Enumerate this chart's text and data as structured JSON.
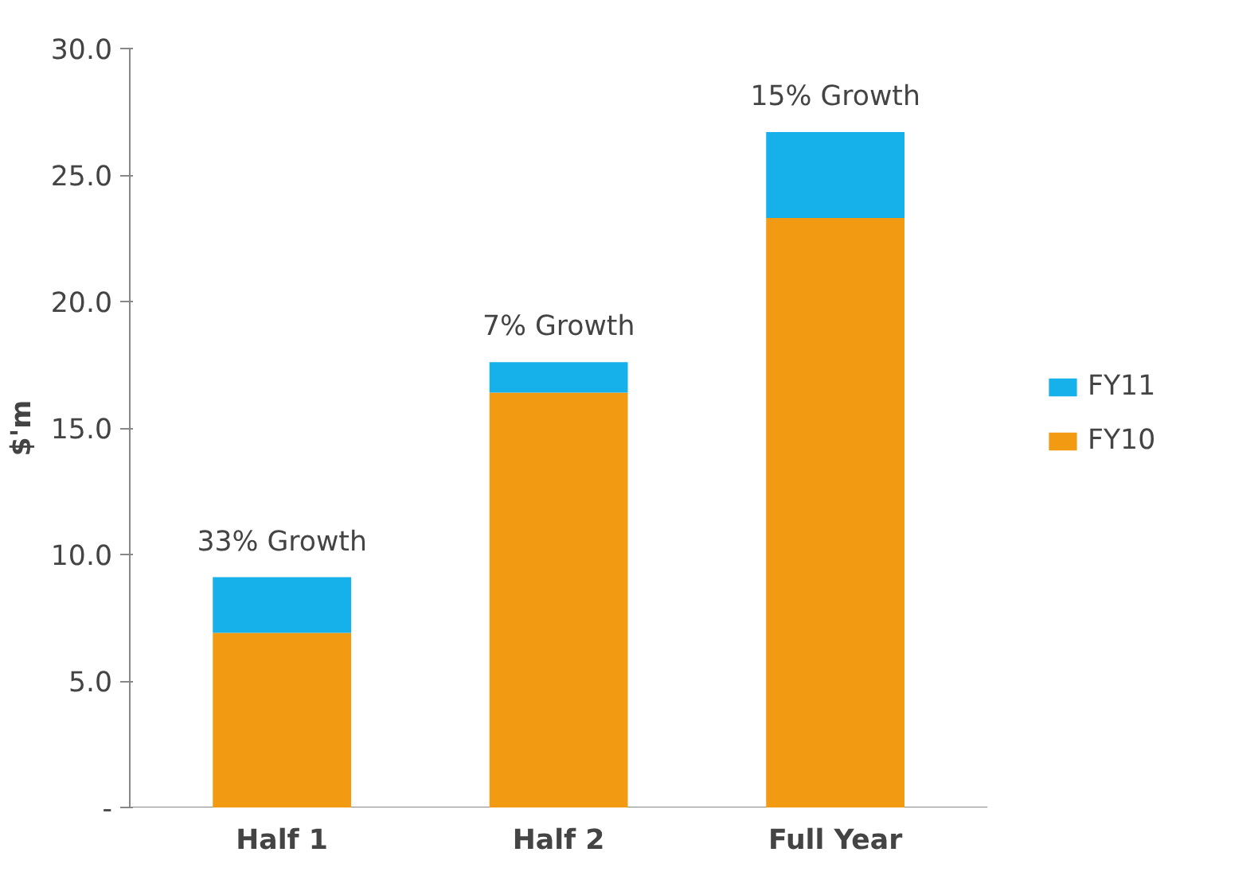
{
  "chart_data": {
    "type": "bar",
    "stacked": true,
    "ylabel": "$'m",
    "categories": [
      "Half 1",
      "Half 2",
      "Full Year"
    ],
    "series": [
      {
        "name": "FY10",
        "color": "#f29a12",
        "values": [
          6.9,
          16.4,
          23.3
        ]
      },
      {
        "name": "FY11",
        "color": "#16b0ea",
        "values": [
          2.2,
          1.2,
          3.4
        ]
      }
    ],
    "ylim": [
      0,
      30
    ],
    "yticks": [
      {
        "value": 0,
        "label": "-"
      },
      {
        "value": 5,
        "label": "5.0"
      },
      {
        "value": 10,
        "label": "10.0"
      },
      {
        "value": 15,
        "label": "15.0"
      },
      {
        "value": 20,
        "label": "20.0"
      },
      {
        "value": 25,
        "label": "25.0"
      },
      {
        "value": 30,
        "label": "30.0"
      }
    ],
    "annotations": [
      {
        "text": "33% Growth",
        "x": "Half 1",
        "y": 9.1
      },
      {
        "text": "7% Growth",
        "x": "Half 2",
        "y": 17.6
      },
      {
        "text": "15% Growth",
        "x": "Full Year",
        "y": 26.7
      }
    ],
    "grid": false,
    "legend": "right"
  }
}
